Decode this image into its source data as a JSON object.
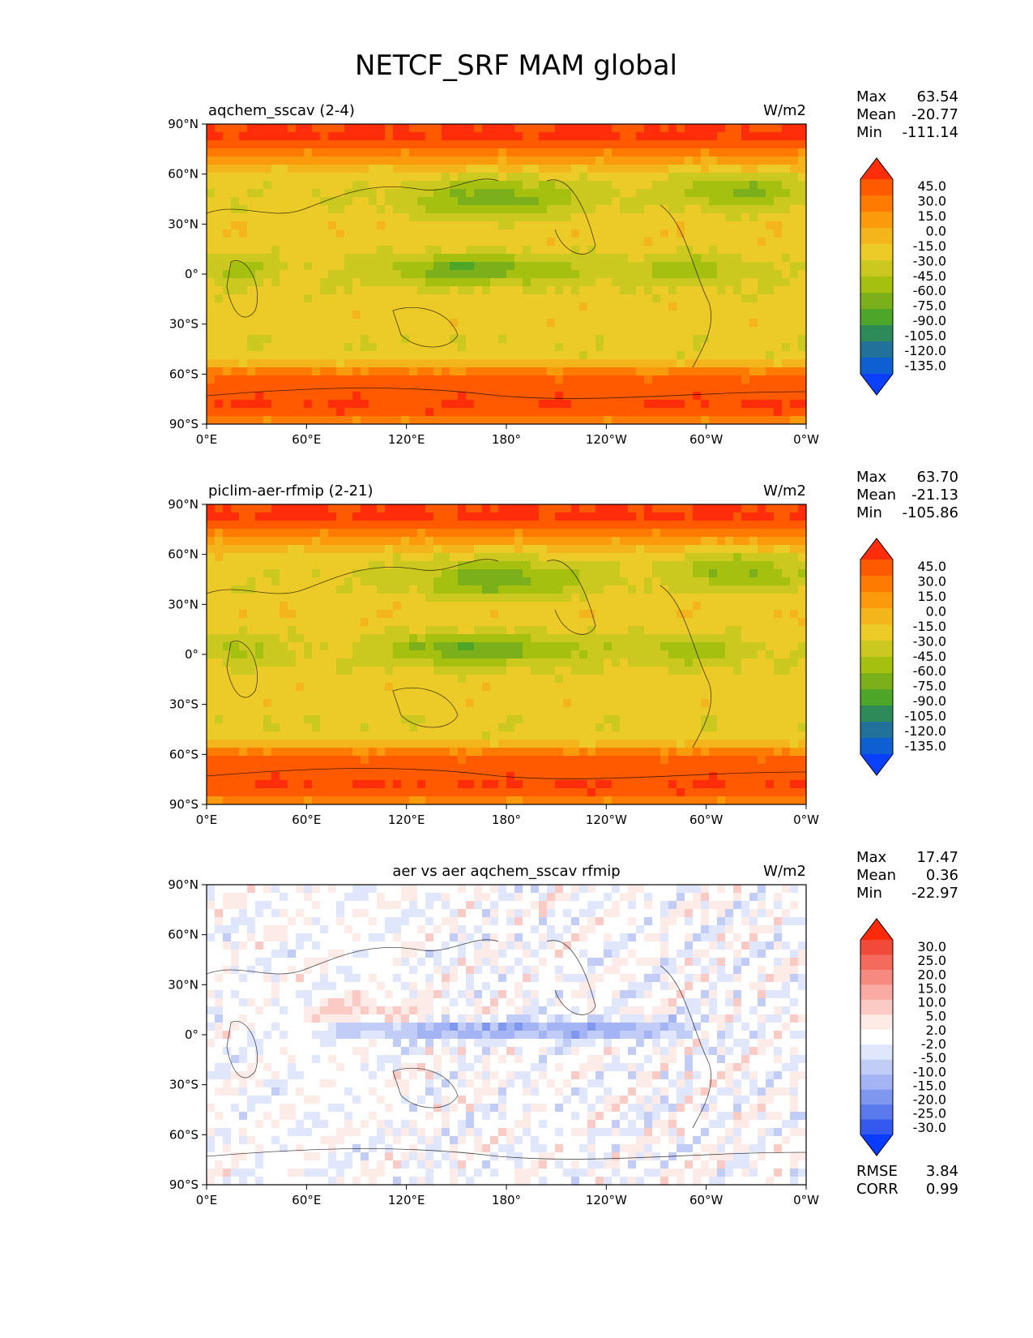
{
  "figure_title": "NETCF_SRF MAM global",
  "chart_data": [
    {
      "type": "heatmap",
      "title": "aqchem_sscav (2-4)",
      "units": "W/m2",
      "xlabel": "",
      "ylabel": "",
      "x_ticks": [
        "0°E",
        "60°E",
        "120°E",
        "180°",
        "120°W",
        "60°W",
        "0°W"
      ],
      "y_ticks": [
        "90°N",
        "60°N",
        "30°N",
        "0°",
        "30°S",
        "60°S",
        "90°S"
      ],
      "xlim": [
        0,
        360
      ],
      "ylim": [
        -90,
        90
      ],
      "stats": [
        {
          "label": "Max",
          "value": "63.54"
        },
        {
          "label": "Mean",
          "value": "-20.77"
        },
        {
          "label": "Min",
          "value": "-111.14"
        }
      ],
      "levels": [
        "45.0",
        "30.0",
        "15.0",
        "0.0",
        "-15.0",
        "-30.0",
        "-45.0",
        "-60.0",
        "-75.0",
        "-90.0",
        "-105.0",
        "-120.0",
        "-135.0"
      ],
      "colors": [
        "#ff2d0a",
        "#ff5a00",
        "#ff7a00",
        "#fb9b0c",
        "#f4b41c",
        "#eccb28",
        "#cbc81f",
        "#a6c010",
        "#7cb01a",
        "#4ea629",
        "#2f8a5a",
        "#22719a",
        "#0e5fd2",
        "#0a40ff"
      ],
      "field": "model"
    },
    {
      "type": "heatmap",
      "title": "piclim-aer-rfmip (2-21)",
      "units": "W/m2",
      "xlabel": "",
      "ylabel": "",
      "x_ticks": [
        "0°E",
        "60°E",
        "120°E",
        "180°",
        "120°W",
        "60°W",
        "0°W"
      ],
      "y_ticks": [
        "90°N",
        "60°N",
        "30°N",
        "0°",
        "30°S",
        "60°S",
        "90°S"
      ],
      "xlim": [
        0,
        360
      ],
      "ylim": [
        -90,
        90
      ],
      "stats": [
        {
          "label": "Max",
          "value": "63.70"
        },
        {
          "label": "Mean",
          "value": "-21.13"
        },
        {
          "label": "Min",
          "value": "-105.86"
        }
      ],
      "levels": [
        "45.0",
        "30.0",
        "15.0",
        "0.0",
        "-15.0",
        "-30.0",
        "-45.0",
        "-60.0",
        "-75.0",
        "-90.0",
        "-105.0",
        "-120.0",
        "-135.0"
      ],
      "colors": [
        "#ff2d0a",
        "#ff5a00",
        "#ff7a00",
        "#fb9b0c",
        "#f4b41c",
        "#eccb28",
        "#cbc81f",
        "#a6c010",
        "#7cb01a",
        "#4ea629",
        "#2f8a5a",
        "#22719a",
        "#0e5fd2",
        "#0a40ff"
      ],
      "field": "reference"
    },
    {
      "type": "heatmap",
      "title": "aer vs aer aqchem_sscav rfmip",
      "units": "W/m2",
      "xlabel": "",
      "ylabel": "",
      "x_ticks": [
        "0°E",
        "60°E",
        "120°E",
        "180°",
        "120°W",
        "60°W",
        "0°W"
      ],
      "y_ticks": [
        "90°N",
        "60°N",
        "30°N",
        "0°",
        "30°S",
        "60°S",
        "90°S"
      ],
      "xlim": [
        0,
        360
      ],
      "ylim": [
        -90,
        90
      ],
      "stats": [
        {
          "label": "Max",
          "value": "17.47"
        },
        {
          "label": "Mean",
          "value": "0.36"
        },
        {
          "label": "Min",
          "value": "-22.97"
        }
      ],
      "extra_stats": [
        {
          "label": "RMSE",
          "value": "3.84"
        },
        {
          "label": "CORR",
          "value": "0.99"
        }
      ],
      "levels": [
        "30.0",
        "25.0",
        "20.0",
        "15.0",
        "10.0",
        "5.0",
        "2.0",
        "-2.0",
        "-5.0",
        "-10.0",
        "-15.0",
        "-20.0",
        "-25.0",
        "-30.0"
      ],
      "colors": [
        "#ff2a0a",
        "#f24a3a",
        "#f46a5c",
        "#f78a80",
        "#f9aaa2",
        "#fbcac4",
        "#fdebe8",
        "#ffffff",
        "#e0e6fb",
        "#c2cdf7",
        "#a3b3f3",
        "#7f97ef",
        "#5a79ec",
        "#3459ef",
        "#0a3cff"
      ],
      "field": "difference"
    }
  ]
}
